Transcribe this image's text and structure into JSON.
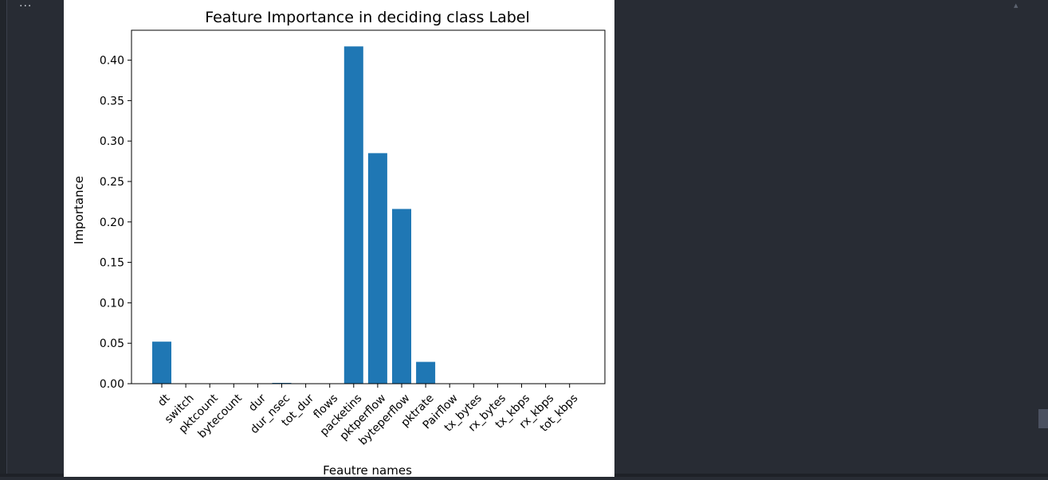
{
  "toolbar": {
    "more_label": "..."
  },
  "chart_data": {
    "type": "bar",
    "title": "Feature Importance in deciding class Label",
    "xlabel": "Feautre names",
    "ylabel": "Importance",
    "ylim": [
      0,
      0.437
    ],
    "yticks": [
      0.0,
      0.05,
      0.1,
      0.15,
      0.2,
      0.25,
      0.3,
      0.35,
      0.4
    ],
    "ytick_labels": [
      "0.00",
      "0.05",
      "0.10",
      "0.15",
      "0.20",
      "0.25",
      "0.30",
      "0.35",
      "0.40"
    ],
    "categories": [
      "dt",
      "switch",
      "pktcount",
      "bytecount",
      "dur",
      "dur_nsec",
      "tot_dur",
      "flows",
      "packetins",
      "pktperflow",
      "byteperflow",
      "pktrate",
      "Pairflow",
      "tx_bytes",
      "rx_bytes",
      "tx_kbps",
      "rx_kbps",
      "tot_kbps"
    ],
    "values": [
      0.052,
      0,
      0,
      0,
      0,
      0.001,
      0,
      0,
      0.417,
      0.285,
      0.216,
      0.027,
      0,
      0,
      0,
      0,
      0,
      0
    ],
    "bar_color": "#1f77b4",
    "grid": false
  }
}
